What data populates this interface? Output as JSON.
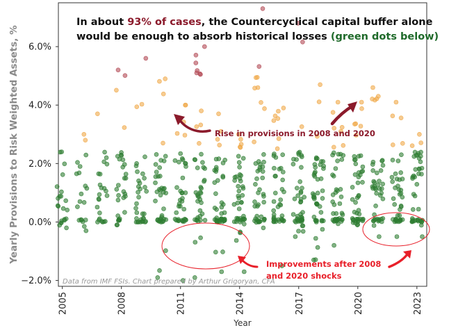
{
  "chart_data": {
    "type": "scatter",
    "title_parts": [
      "In about ",
      "93% of cases",
      ", the Countercyclical capital buffer alone"
    ],
    "title_line2_parts": [
      "would be enough to absorb historical losses ",
      "(green dots below)"
    ],
    "xlabel": "Year",
    "ylabel": "Yearly Provisions to Risk Weighted Assets, %",
    "xlim": [
      2004.8,
      2023.5
    ],
    "ylim": [
      -2.2,
      7.5
    ],
    "x_ticks": [
      2005,
      2008,
      2011,
      2014,
      2017,
      2020,
      2023
    ],
    "y_ticks": [
      -2.0,
      0.0,
      2.0,
      4.0,
      6.0
    ],
    "y_tick_labels": [
      "−2.0%",
      "0.0%",
      "2.0%",
      "4.0%",
      "6.0%"
    ],
    "grid": false,
    "legend": "none",
    "series_colors": {
      "below_buffer": "#2e7d32",
      "above_buffer": "#f0a848",
      "far_above": "#b24a55"
    },
    "thresholds": {
      "buffer_upper": 2.5,
      "far_above": 5.0
    },
    "years": [
      2005,
      2006,
      2007,
      2008,
      2009,
      2010,
      2011,
      2012,
      2013,
      2014,
      2015,
      2016,
      2017,
      2018,
      2019,
      2020,
      2021,
      2022,
      2023
    ],
    "distribution": {
      "points_per_year": [
        22,
        20,
        24,
        32,
        34,
        42,
        40,
        44,
        46,
        46,
        46,
        44,
        46,
        46,
        46,
        48,
        44,
        44,
        44
      ],
      "max_per_year": [
        2.4,
        3.0,
        3.7,
        5.2,
        5.6,
        4.9,
        4.0,
        6.0,
        3.7,
        3.0,
        7.3,
        3.9,
        6.8,
        4.7,
        4.1,
        4.1,
        4.6,
        4.1,
        3.0
      ],
      "min_per_year": [
        -0.2,
        -0.3,
        0.0,
        -0.1,
        0.0,
        -1.9,
        -2.0,
        -1.9,
        -1.7,
        -1.7,
        -0.2,
        -1.5,
        -0.5,
        -1.3,
        -0.8,
        -0.1,
        -0.5,
        -0.5,
        -0.5
      ]
    },
    "annotations": {
      "rise": "Rise in provisions in 2008 and 2020",
      "improvements_line1": "Improvements after 2008",
      "improvements_line2": "and 2020 shocks",
      "source": "Data from IMF FSIs. Chart prepared by Arthur Grigoryan, CFA"
    }
  }
}
